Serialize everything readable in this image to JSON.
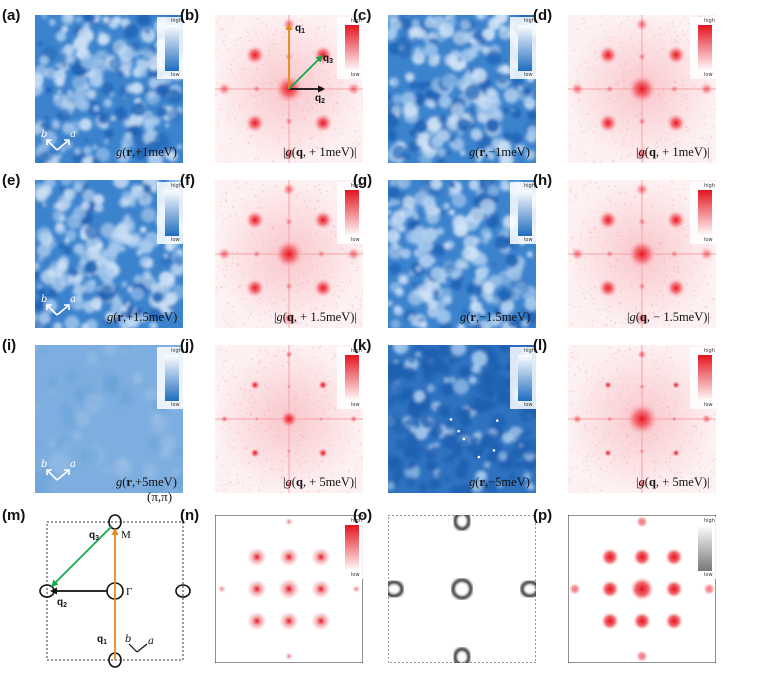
{
  "panels": [
    {
      "id": "a",
      "label": "(a)",
      "type": "real",
      "caption": "g(r,+1meV)",
      "cbar": true,
      "lattice_axes": true
    },
    {
      "id": "b",
      "label": "(b)",
      "type": "fft",
      "caption": "|g(q, + 1meV)|",
      "cbar": true,
      "vectors": true
    },
    {
      "id": "c",
      "label": "(c)",
      "type": "real",
      "caption": "g(r,−1meV)",
      "cbar": true
    },
    {
      "id": "d",
      "label": "(d)",
      "type": "fft",
      "caption": "|g(q, + 1meV)|",
      "cbar": true
    },
    {
      "id": "e",
      "label": "(e)",
      "type": "real",
      "caption": "g(r,+1.5meV)",
      "cbar": true,
      "lattice_axes": true
    },
    {
      "id": "f",
      "label": "(f)",
      "type": "fft",
      "caption": "|g(q, + 1.5meV)|",
      "cbar": true
    },
    {
      "id": "g",
      "label": "(g)",
      "type": "real",
      "caption": "g(r,−1.5meV)",
      "cbar": true
    },
    {
      "id": "h",
      "label": "(h)",
      "type": "fft",
      "caption": "|g(q, − 1.5meV)|",
      "cbar": true
    },
    {
      "id": "i",
      "label": "(i)",
      "type": "real-flat",
      "caption": "g(r,+5meV)",
      "cbar": true,
      "lattice_axes": true
    },
    {
      "id": "j",
      "label": "(j)",
      "type": "fft-weak",
      "caption": "|g(q, + 5meV)|",
      "cbar": true
    },
    {
      "id": "k",
      "label": "(k)",
      "type": "real-dark",
      "caption": "g(r,−5meV)",
      "cbar": true
    },
    {
      "id": "l",
      "label": "(l)",
      "type": "fft-center",
      "caption": "|g(q, + 5meV)|",
      "cbar": true
    },
    {
      "id": "m",
      "label": "(m)",
      "type": "schematic",
      "caption": ""
    },
    {
      "id": "n",
      "label": "(n)",
      "type": "sim-n",
      "caption": "",
      "cbar": true
    },
    {
      "id": "o",
      "label": "(o)",
      "type": "sim-o",
      "caption": ""
    },
    {
      "id": "p",
      "label": "(p)",
      "type": "sim-p",
      "caption": "",
      "cbar": true
    }
  ],
  "colorbar": {
    "high": "high",
    "low": "low"
  },
  "vectors": {
    "q1": "q",
    "q1_sub": "1",
    "q2": "q",
    "q2_sub": "2",
    "q3": "q",
    "q3_sub": "3"
  },
  "schematic": {
    "corner": "(π,π)",
    "M": "M",
    "Gamma": "Γ",
    "q1": "q",
    "q1_sub": "1",
    "q2": "q",
    "q2_sub": "2",
    "q3": "q",
    "q3_sub": "3",
    "axis_a": "a",
    "axis_b": "b"
  },
  "axes_letters": {
    "a": "a",
    "b": "b"
  },
  "colors": {
    "real_dark": "#2f76c4",
    "real_light": "#cfe2f5",
    "fft_peak": "#e8192a",
    "fft_bg": "#fbeaec",
    "arrow_orange": "#e8891c",
    "arrow_green": "#18a84a",
    "arrow_black": "#111111"
  }
}
